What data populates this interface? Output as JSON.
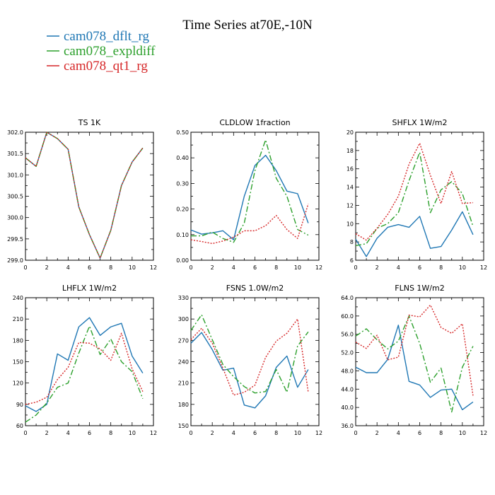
{
  "title": "Time Series at70E,-10N",
  "legend": [
    {
      "name": "cam078_dflt_rg",
      "color": "#1f77b4"
    },
    {
      "name": "cam078_expldiff",
      "color": "#2ca02c"
    },
    {
      "name": "cam078_qt1_rg",
      "color": "#d62728"
    }
  ],
  "chart_data": [
    {
      "type": "line",
      "title": "TS   1K",
      "x": [
        0,
        1,
        2,
        3,
        4,
        5,
        6,
        7,
        8,
        9,
        10,
        11
      ],
      "xlim": [
        0,
        12
      ],
      "xticks": [
        0,
        2,
        4,
        6,
        8,
        10,
        12
      ],
      "ylim": [
        299.0,
        302.0
      ],
      "yticks": [
        299.0,
        299.5,
        300.0,
        300.5,
        301.0,
        301.5,
        302.0
      ],
      "yticklabels": [
        "299.0",
        "299.5",
        "300.0",
        "300.5",
        "301.0",
        "301.5",
        "302.0"
      ],
      "series": [
        {
          "name": "cam078_dflt_rg",
          "values": [
            301.4,
            301.2,
            302.0,
            301.85,
            301.6,
            300.25,
            299.6,
            299.05,
            299.7,
            300.75,
            301.3,
            301.63
          ]
        },
        {
          "name": "cam078_expldiff",
          "values": [
            301.4,
            301.2,
            302.0,
            301.85,
            301.6,
            300.25,
            299.6,
            299.05,
            299.7,
            300.75,
            301.3,
            301.63
          ]
        },
        {
          "name": "cam078_qt1_rg",
          "values": [
            301.4,
            301.2,
            302.0,
            301.85,
            301.6,
            300.25,
            299.6,
            299.05,
            299.7,
            300.75,
            301.3,
            301.63
          ]
        }
      ]
    },
    {
      "type": "line",
      "title": "CLDLOW   1fraction",
      "x": [
        0,
        1,
        2,
        3,
        4,
        5,
        6,
        7,
        8,
        9,
        10,
        11
      ],
      "xlim": [
        0,
        12
      ],
      "xticks": [
        0,
        2,
        4,
        6,
        8,
        10,
        12
      ],
      "ylim": [
        0.0,
        0.5
      ],
      "yticks": [
        0,
        0.1,
        0.2,
        0.3,
        0.4,
        0.5
      ],
      "yticklabels": [
        "0.00",
        "0.10",
        "0.20",
        "0.30",
        "0.40",
        "0.50"
      ],
      "series": [
        {
          "name": "cam078_dflt_rg",
          "values": [
            0.118,
            0.102,
            0.107,
            0.115,
            0.08,
            0.25,
            0.37,
            0.41,
            0.35,
            0.27,
            0.26,
            0.145
          ]
        },
        {
          "name": "cam078_expldiff",
          "values": [
            0.095,
            0.095,
            0.11,
            0.085,
            0.07,
            0.145,
            0.35,
            0.47,
            0.32,
            0.25,
            0.12,
            0.098
          ]
        },
        {
          "name": "cam078_qt1_rg",
          "values": [
            0.08,
            0.073,
            0.065,
            0.075,
            0.09,
            0.115,
            0.115,
            0.135,
            0.175,
            0.12,
            0.085,
            0.22
          ]
        }
      ]
    },
    {
      "type": "line",
      "title": "SHFLX   1W/m2",
      "x": [
        0,
        1,
        2,
        3,
        4,
        5,
        6,
        7,
        8,
        9,
        10,
        11
      ],
      "xlim": [
        0,
        12
      ],
      "xticks": [
        0,
        2,
        4,
        6,
        8,
        10,
        12
      ],
      "ylim": [
        6,
        20
      ],
      "yticks": [
        6,
        8,
        10,
        12,
        14,
        16,
        18,
        20
      ],
      "yticklabels": [
        "6",
        "8",
        "10",
        "12",
        "14",
        "16",
        "18",
        "20"
      ],
      "series": [
        {
          "name": "cam078_dflt_rg",
          "values": [
            8.3,
            6.4,
            8.4,
            9.6,
            9.9,
            9.6,
            10.8,
            7.3,
            7.5,
            9.3,
            11.3,
            8.8
          ]
        },
        {
          "name": "cam078_expldiff",
          "values": [
            7.6,
            7.8,
            9.5,
            10.0,
            11.2,
            14.7,
            17.8,
            11.2,
            13.7,
            14.6,
            13.3,
            9.7
          ]
        },
        {
          "name": "cam078_qt1_rg",
          "values": [
            8.9,
            8.2,
            9.5,
            11.0,
            13.0,
            16.5,
            18.8,
            15.3,
            12.2,
            15.7,
            12.2,
            12.3
          ]
        }
      ]
    },
    {
      "type": "line",
      "title": "LHFLX   1W/m2",
      "x": [
        0,
        1,
        2,
        3,
        4,
        5,
        6,
        7,
        8,
        9,
        10,
        11
      ],
      "xlim": [
        0,
        12
      ],
      "xticks": [
        0,
        2,
        4,
        6,
        8,
        10,
        12
      ],
      "ylim": [
        60,
        240
      ],
      "yticks": [
        60,
        90,
        120,
        150,
        180,
        210,
        240
      ],
      "yticklabels": [
        "60",
        "90",
        "120",
        "150",
        "180",
        "210",
        "240"
      ],
      "series": [
        {
          "name": "cam078_dflt_rg",
          "values": [
            88,
            80,
            90,
            161,
            152,
            199,
            212,
            187,
            199,
            204,
            158,
            134
          ]
        },
        {
          "name": "cam078_expldiff",
          "values": [
            65,
            75,
            92,
            114,
            120,
            162,
            200,
            160,
            182,
            150,
            136,
            98
          ]
        },
        {
          "name": "cam078_qt1_rg",
          "values": [
            90,
            93,
            100,
            125,
            142,
            177,
            176,
            168,
            152,
            190,
            140,
            108
          ]
        }
      ]
    },
    {
      "type": "line",
      "title": "FSNS   1.0W/m2",
      "x": [
        0,
        1,
        2,
        3,
        4,
        5,
        6,
        7,
        8,
        9,
        10,
        11
      ],
      "xlim": [
        0,
        12
      ],
      "xticks": [
        0,
        2,
        4,
        6,
        8,
        10,
        12
      ],
      "ylim": [
        150,
        330
      ],
      "yticks": [
        150,
        180,
        210,
        240,
        270,
        300,
        330
      ],
      "yticklabels": [
        "150",
        "180",
        "210",
        "240",
        "270",
        "300",
        "330"
      ],
      "series": [
        {
          "name": "cam078_dflt_rg",
          "values": [
            266,
            281,
            257,
            228,
            231,
            179,
            175,
            192,
            232,
            248,
            204,
            229
          ]
        },
        {
          "name": "cam078_expldiff",
          "values": [
            284,
            306,
            271,
            236,
            219,
            205,
            196,
            198,
            229,
            197,
            262,
            282
          ]
        },
        {
          "name": "cam078_qt1_rg",
          "values": [
            271,
            287,
            266,
            231,
            193,
            197,
            207,
            246,
            269,
            280,
            300,
            197
          ]
        }
      ]
    },
    {
      "type": "line",
      "title": "FLNS   1W/m2",
      "x": [
        0,
        1,
        2,
        3,
        4,
        5,
        6,
        7,
        8,
        9,
        10,
        11
      ],
      "xlim": [
        0,
        12
      ],
      "xticks": [
        0,
        2,
        4,
        6,
        8,
        10,
        12
      ],
      "ylim": [
        36,
        64
      ],
      "yticks": [
        36,
        40,
        44,
        48,
        52,
        56,
        60,
        64
      ],
      "yticklabels": [
        "36.0",
        "40.0",
        "44.0",
        "48.0",
        "52.0",
        "56.0",
        "60.0",
        "64.0"
      ],
      "series": [
        {
          "name": "cam078_dflt_rg",
          "values": [
            48.8,
            47.6,
            47.6,
            50.5,
            58.0,
            45.7,
            44.9,
            42.2,
            43.8,
            44.0,
            39.5,
            41.2
          ]
        },
        {
          "name": "cam078_expldiff",
          "values": [
            55.6,
            57.2,
            54.8,
            52.8,
            54.5,
            60.0,
            54.0,
            45.5,
            48.6,
            39.0,
            48.8,
            53.4
          ]
        },
        {
          "name": "cam078_qt1_rg",
          "values": [
            54.3,
            52.9,
            55.8,
            50.4,
            51.0,
            60.2,
            59.8,
            62.4,
            57.5,
            56.2,
            58.3,
            42.6
          ]
        }
      ]
    }
  ]
}
